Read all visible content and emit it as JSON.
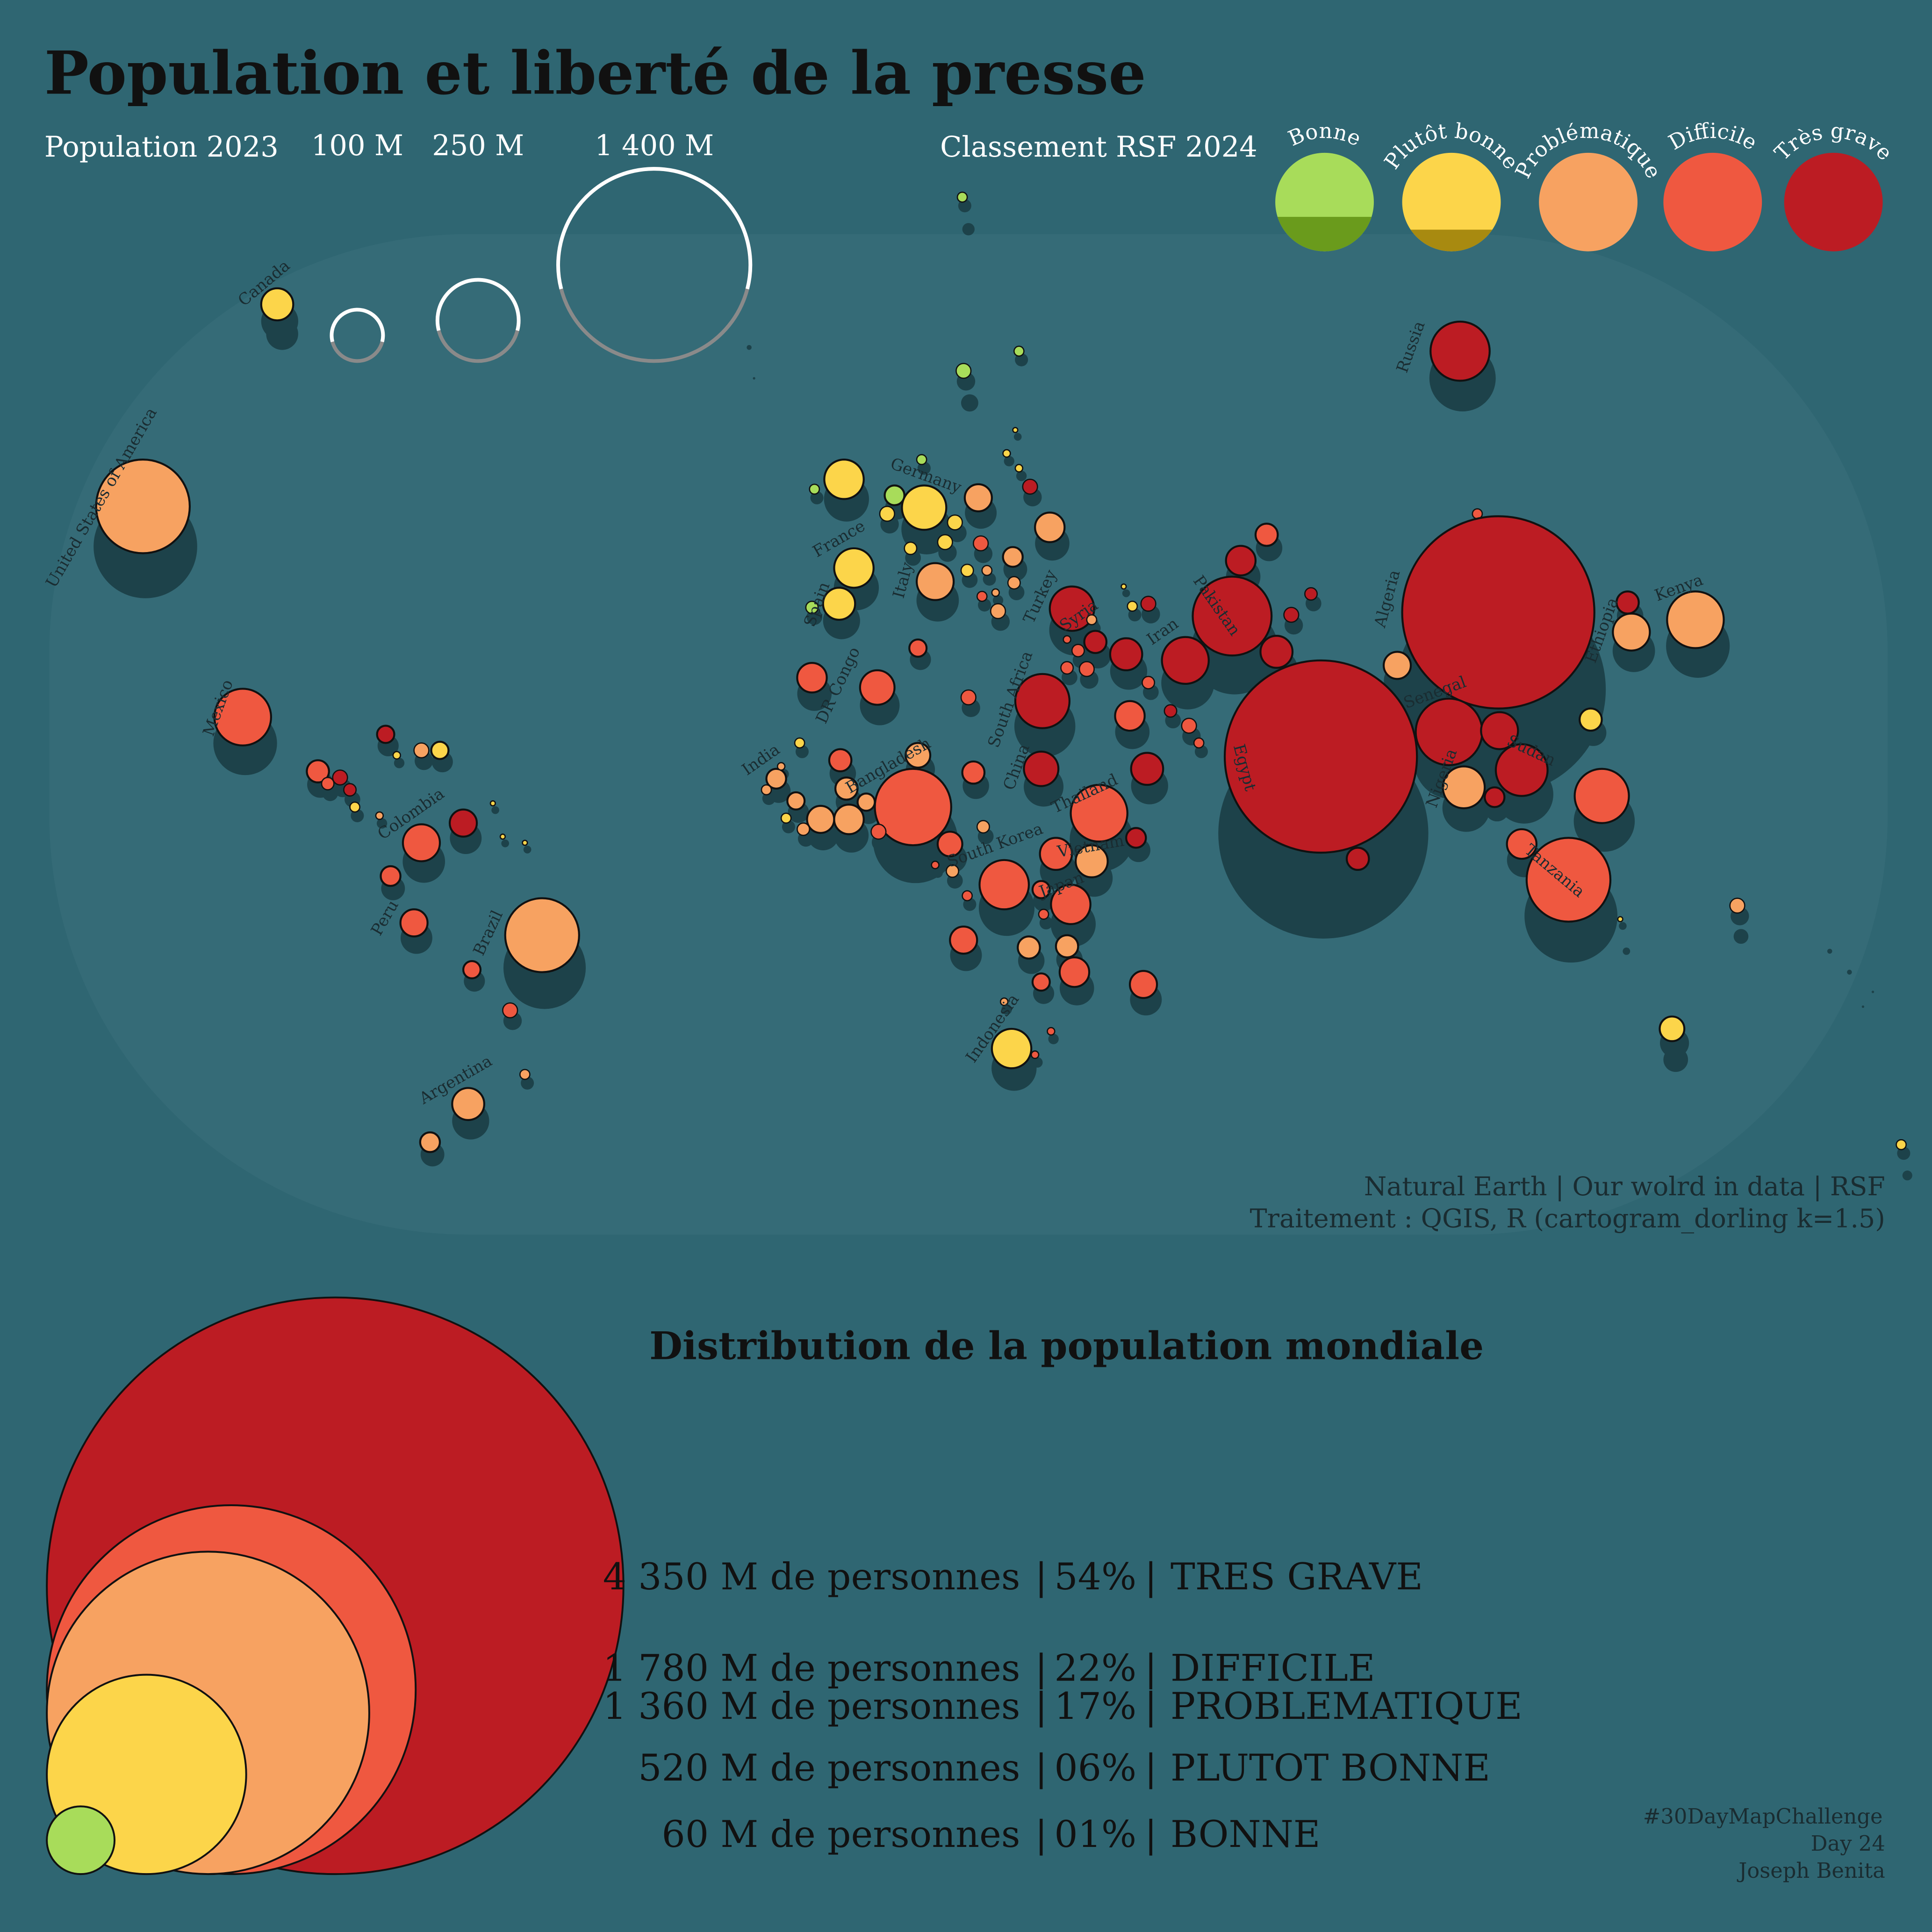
{
  "title": "Population et liberté de la presse",
  "size_legend": {
    "label": "Population 2023",
    "items": [
      {
        "label": "100 M",
        "population_m": 100
      },
      {
        "label": "250 M",
        "population_m": 250
      },
      {
        "label": "1 400 M",
        "population_m": 1400
      }
    ]
  },
  "rsf_legend": {
    "label": "Classement RSF 2024",
    "categories": [
      {
        "key": "bonne",
        "label": "Bonne",
        "color": "#a8dc5a",
        "shade": "#6a9b1c",
        "bottom_fill": 0.35
      },
      {
        "key": "plutot_bonne",
        "label": "Plutôt bonne",
        "color": "#fcd54a",
        "shade": "#a88a10",
        "bottom_fill": 0.22
      },
      {
        "key": "problematique",
        "label": "Problématique",
        "color": "#f7a261",
        "shade": null,
        "bottom_fill": 0
      },
      {
        "key": "difficile",
        "label": "Difficile",
        "color": "#ef5840",
        "shade": null,
        "bottom_fill": 0
      },
      {
        "key": "tres_grave",
        "label": "Très grave",
        "color": "#bc1c23",
        "shade": null,
        "bottom_fill": 0
      }
    ]
  },
  "map": {
    "labeled_countries": [
      {
        "name": "Canada",
        "category": "plutot_bonne"
      },
      {
        "name": "United States of America",
        "category": "problematique"
      },
      {
        "name": "Mexico",
        "category": "difficile"
      },
      {
        "name": "Colombia",
        "category": "difficile"
      },
      {
        "name": "Peru",
        "category": "difficile"
      },
      {
        "name": "Brazil",
        "category": "problematique"
      },
      {
        "name": "Argentina",
        "category": "problematique"
      },
      {
        "name": "Germany",
        "category": "plutot_bonne"
      },
      {
        "name": "France",
        "category": "plutot_bonne"
      },
      {
        "name": "Spain",
        "category": "plutot_bonne"
      },
      {
        "name": "Italy",
        "category": "problematique"
      },
      {
        "name": "Turkey",
        "category": "tres_grave"
      },
      {
        "name": "Russia",
        "category": "tres_grave"
      },
      {
        "name": "Syria",
        "category": "tres_grave"
      },
      {
        "name": "Iran",
        "category": "tres_grave"
      },
      {
        "name": "Pakistan",
        "category": "tres_grave"
      },
      {
        "name": "Egypt",
        "category": "tres_grave"
      },
      {
        "name": "Algeria",
        "category": "difficile"
      },
      {
        "name": "Senegal",
        "category": "problematique"
      },
      {
        "name": "Nigeria",
        "category": "difficile"
      },
      {
        "name": "Sudan",
        "category": "tres_grave"
      },
      {
        "name": "Ethiopia",
        "category": "difficile"
      },
      {
        "name": "Kenya",
        "category": "problematique"
      },
      {
        "name": "Tanzania",
        "category": "difficile"
      },
      {
        "name": "DR Congo",
        "category": "difficile"
      },
      {
        "name": "South Africa",
        "category": "plutot_bonne"
      },
      {
        "name": "India",
        "category": "tres_grave"
      },
      {
        "name": "China",
        "category": "tres_grave"
      },
      {
        "name": "Bangladesh",
        "category": "tres_grave"
      },
      {
        "name": "Thailand",
        "category": "problematique"
      },
      {
        "name": "Vietnam",
        "category": "tres_grave"
      },
      {
        "name": "South Korea",
        "category": "problematique"
      },
      {
        "name": "Japan",
        "category": "problematique"
      },
      {
        "name": "Indonesia",
        "category": "difficile"
      }
    ]
  },
  "sources": {
    "line1": "Natural Earth | Our wolrd in data | RSF",
    "line2": "Traitement : QGIS, R (cartogram_dorling k=1.5)"
  },
  "distribution": {
    "title": "Distribution de la population mondiale",
    "rows": [
      {
        "population_m": 4350,
        "population_text": "4 350 M de personnes",
        "percent": "54%",
        "label": "TRES GRAVE",
        "category": "tres_grave"
      },
      {
        "population_m": 1780,
        "population_text": "1 780 M de personnes",
        "percent": "22%",
        "label": "DIFFICILE",
        "category": "difficile"
      },
      {
        "population_m": 1360,
        "population_text": "1 360 M de personnes",
        "percent": "17%",
        "label": "PROBLEMATIQUE",
        "category": "problematique"
      },
      {
        "population_m": 520,
        "population_text": "520 M de personnes",
        "percent": "06%",
        "label": "PLUTOT BONNE",
        "category": "plutot_bonne"
      },
      {
        "population_m": 60,
        "population_text": "60 M de personnes",
        "percent": "01%",
        "label": "BONNE",
        "category": "bonne"
      }
    ]
  },
  "credits": {
    "line1": "#30DayMapChallenge",
    "line2": "Day 24",
    "line3": "Joseph Benita"
  },
  "colors": {
    "background": "#2f6672",
    "globe": "#356b77",
    "shadow": "#1d424a",
    "ink": "#111111",
    "text_light": "#ffffff",
    "text_dark": "#1a2c31",
    "legend_ring_grey": "#8a8a8a"
  }
}
